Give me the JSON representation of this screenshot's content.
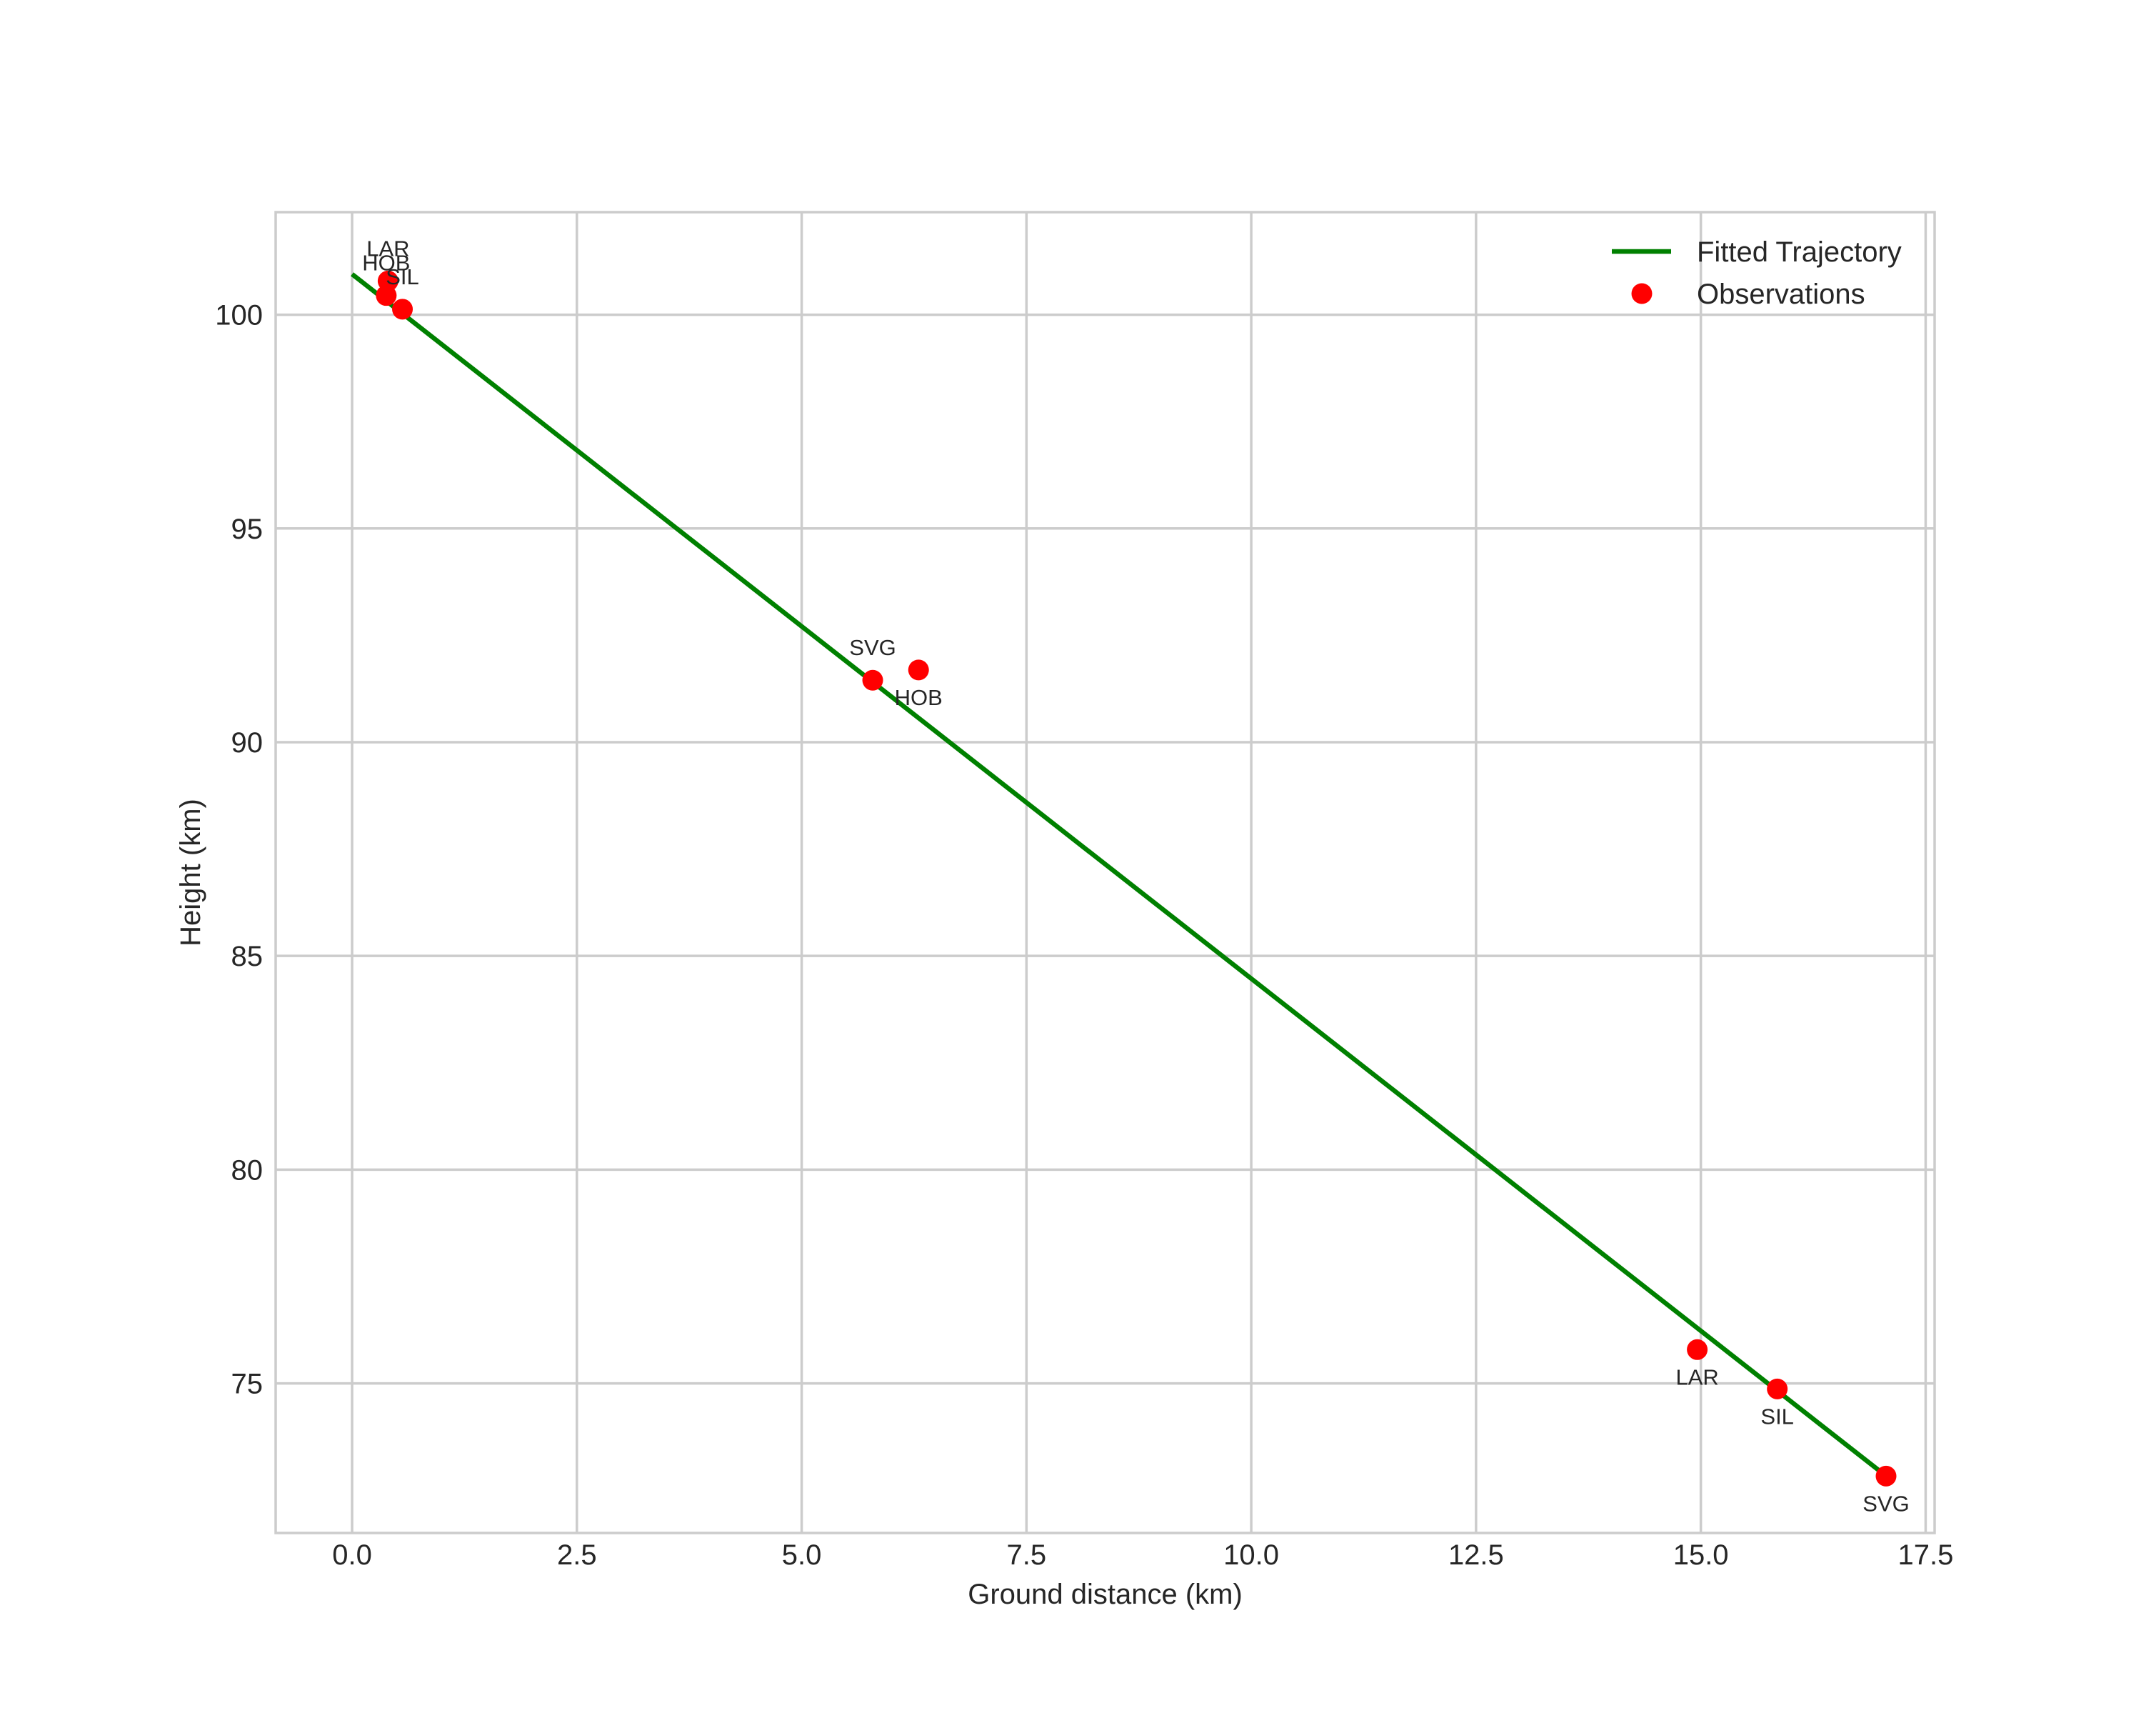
{
  "chart_data": {
    "type": "scatter",
    "title": "",
    "xlabel": "Ground distance (km)",
    "ylabel": "Height (km)",
    "xlim": [
      -0.85,
      17.6
    ],
    "ylim": [
      71.5,
      102.4
    ],
    "grid": true,
    "legend_position": "upper right",
    "x_ticks": [
      0.0,
      2.5,
      5.0,
      7.5,
      10.0,
      12.5,
      15.0,
      17.5
    ],
    "x_tick_labels": [
      "0.0",
      "2.5",
      "5.0",
      "7.5",
      "10.0",
      "12.5",
      "15.0",
      "17.5"
    ],
    "y_ticks": [
      75,
      80,
      85,
      90,
      95,
      100
    ],
    "y_tick_labels": [
      "75",
      "80",
      "85",
      "90",
      "95",
      "100"
    ],
    "legend": [
      {
        "label": "Fitted Trajectory",
        "kind": "line",
        "color": "#008000"
      },
      {
        "label": "Observations",
        "kind": "marker",
        "color": "#ff0000"
      }
    ],
    "series": [
      {
        "name": "Fitted Trajectory",
        "type": "line",
        "color": "#008000",
        "x": [
          0.0,
          17.05
        ],
        "y": [
          100.95,
          72.85
        ]
      },
      {
        "name": "Observations",
        "type": "scatter",
        "color": "#ff0000",
        "points": [
          {
            "station": "LAR",
            "x": 0.4,
            "y": 100.79,
            "label_pos": "above"
          },
          {
            "station": "HOB",
            "x": 0.38,
            "y": 100.45,
            "label_pos": "above"
          },
          {
            "station": "SIL",
            "x": 0.56,
            "y": 100.13,
            "label_pos": "above"
          },
          {
            "station": "SVG",
            "x": 5.79,
            "y": 91.45,
            "label_pos": "above"
          },
          {
            "station": "HOB",
            "x": 6.3,
            "y": 91.69,
            "label_pos": "below"
          },
          {
            "station": "LAR",
            "x": 14.96,
            "y": 75.79,
            "label_pos": "below"
          },
          {
            "station": "SIL",
            "x": 15.85,
            "y": 74.87,
            "label_pos": "below"
          },
          {
            "station": "SVG",
            "x": 17.06,
            "y": 72.83,
            "label_pos": "below"
          }
        ]
      }
    ]
  }
}
